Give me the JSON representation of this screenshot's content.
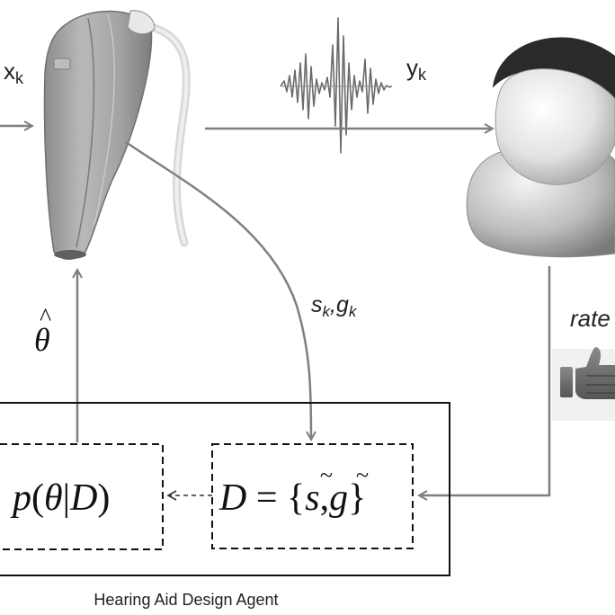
{
  "diagram": {
    "title": "Hearing Aid Design Agent",
    "signals": {
      "input": {
        "base": "x",
        "sub": "k"
      },
      "output": {
        "base": "y",
        "sub": "k"
      },
      "feedback_params": {
        "s": "s",
        "s_sub": "k",
        "sep": ",",
        "g": "g",
        "g_sub": "k"
      },
      "rating": "rate",
      "theta_hat": "θ"
    },
    "agent": {
      "posterior": {
        "p": "p",
        "open": "(",
        "theta": "θ",
        "bar": "|",
        "D": "D",
        "close": ")"
      },
      "dataset": {
        "D": "D",
        "eq": " = {",
        "s": "s",
        "comma": ",",
        "g": "g",
        "close": "}"
      },
      "tilde": "~",
      "hat": "^"
    },
    "colors": {
      "line": "#7f7f7f",
      "box_line": "#111111",
      "hearing_aid": "#9b9b9b",
      "hearing_aid_dark": "#6f6f6f",
      "person_skin": "#d9d9d9",
      "person_hair": "#2a2a2a",
      "waveform": "#6a6a6a"
    }
  }
}
